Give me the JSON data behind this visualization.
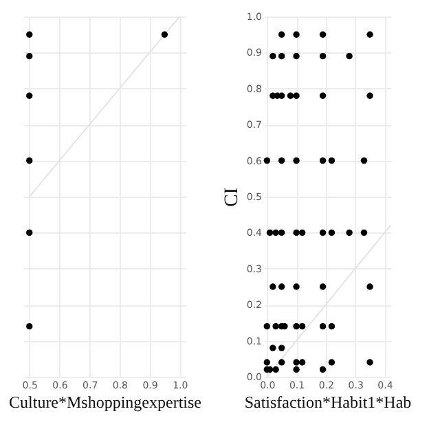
{
  "chart_data": [
    {
      "type": "scatter",
      "xlabel": "Culture*Mshoppingexpertise",
      "xlim": [
        0.48,
        1.02
      ],
      "xticks": [
        0.5,
        0.6,
        0.7,
        0.8,
        0.9,
        {
          "value": 1,
          "label": "1.0"
        }
      ],
      "ylim": [
        0,
        1
      ],
      "yticks": [
        0,
        0.1,
        0.2,
        0.3,
        0.4,
        0.5,
        0.6,
        0.7,
        0.8,
        0.9,
        1
      ],
      "tick_labels": "x",
      "grid": true,
      "series": [
        {
          "type": "line",
          "color": "#e4e4e4",
          "x": [
            0.5,
            1.0
          ],
          "values": [
            0.5,
            1.0
          ]
        },
        {
          "color": "#000000",
          "marker": "circle",
          "x": [
            0.5,
            0.5,
            0.5,
            0.5,
            0.5,
            0.5,
            0.95
          ],
          "values": [
            0.95,
            0.89,
            0.78,
            0.6,
            0.4,
            0.14,
            0.95
          ]
        }
      ]
    },
    {
      "type": "scatter",
      "xlabel": "Satisfaction*Habit1*Hab",
      "ylabel": "CI",
      "xlim": [
        -0.01,
        0.42
      ],
      "xticks": [
        {
          "value": 0,
          "label": "0.0"
        },
        0.1,
        0.2,
        0.3,
        0.4
      ],
      "ylim": [
        0,
        1
      ],
      "yticks": [
        {
          "value": 0,
          "label": "0.0"
        },
        0.1,
        0.2,
        0.3,
        0.4,
        0.5,
        0.6,
        0.7,
        0.8,
        0.9,
        {
          "value": 1,
          "label": "1.0"
        }
      ],
      "grid": true,
      "series": [
        {
          "type": "line",
          "color": "#e4e4e4",
          "x": [
            0,
            0.42
          ],
          "values": [
            0,
            0.42
          ]
        },
        {
          "color": "#000000",
          "marker": "circle",
          "x": [
            0.05,
            0.1,
            0.19,
            0.35,
            0.02,
            0.05,
            0.1,
            0.19,
            0.28,
            0.02,
            0.035,
            0.05,
            0.08,
            0.1,
            0.19,
            0.35,
            0,
            0.05,
            0.1,
            0.19,
            0.22,
            0.33,
            0.01,
            0.03,
            0.05,
            0.1,
            0.12,
            0.19,
            0.22,
            0.28,
            0.33,
            0.02,
            0.05,
            0.1,
            0.19,
            0.35,
            0,
            0.03,
            0.05,
            0.06,
            0.1,
            0.12,
            0.19,
            0.22,
            0.02,
            0.05,
            0,
            0.05,
            0.1,
            0.12,
            0.22,
            0.35,
            0,
            0.01,
            0.03,
            0.1,
            0.19
          ],
          "values": [
            0.95,
            0.95,
            0.95,
            0.95,
            0.89,
            0.89,
            0.89,
            0.89,
            0.89,
            0.78,
            0.78,
            0.78,
            0.78,
            0.78,
            0.78,
            0.78,
            0.6,
            0.6,
            0.6,
            0.6,
            0.6,
            0.6,
            0.4,
            0.4,
            0.4,
            0.4,
            0.4,
            0.4,
            0.4,
            0.4,
            0.4,
            0.25,
            0.25,
            0.25,
            0.25,
            0.25,
            0.14,
            0.14,
            0.14,
            0.14,
            0.14,
            0.14,
            0.14,
            0.14,
            0.08,
            0.08,
            0.04,
            0.04,
            0.04,
            0.04,
            0.04,
            0.04,
            0.02,
            0.02,
            0.02,
            0.02,
            0.02
          ]
        }
      ]
    }
  ]
}
